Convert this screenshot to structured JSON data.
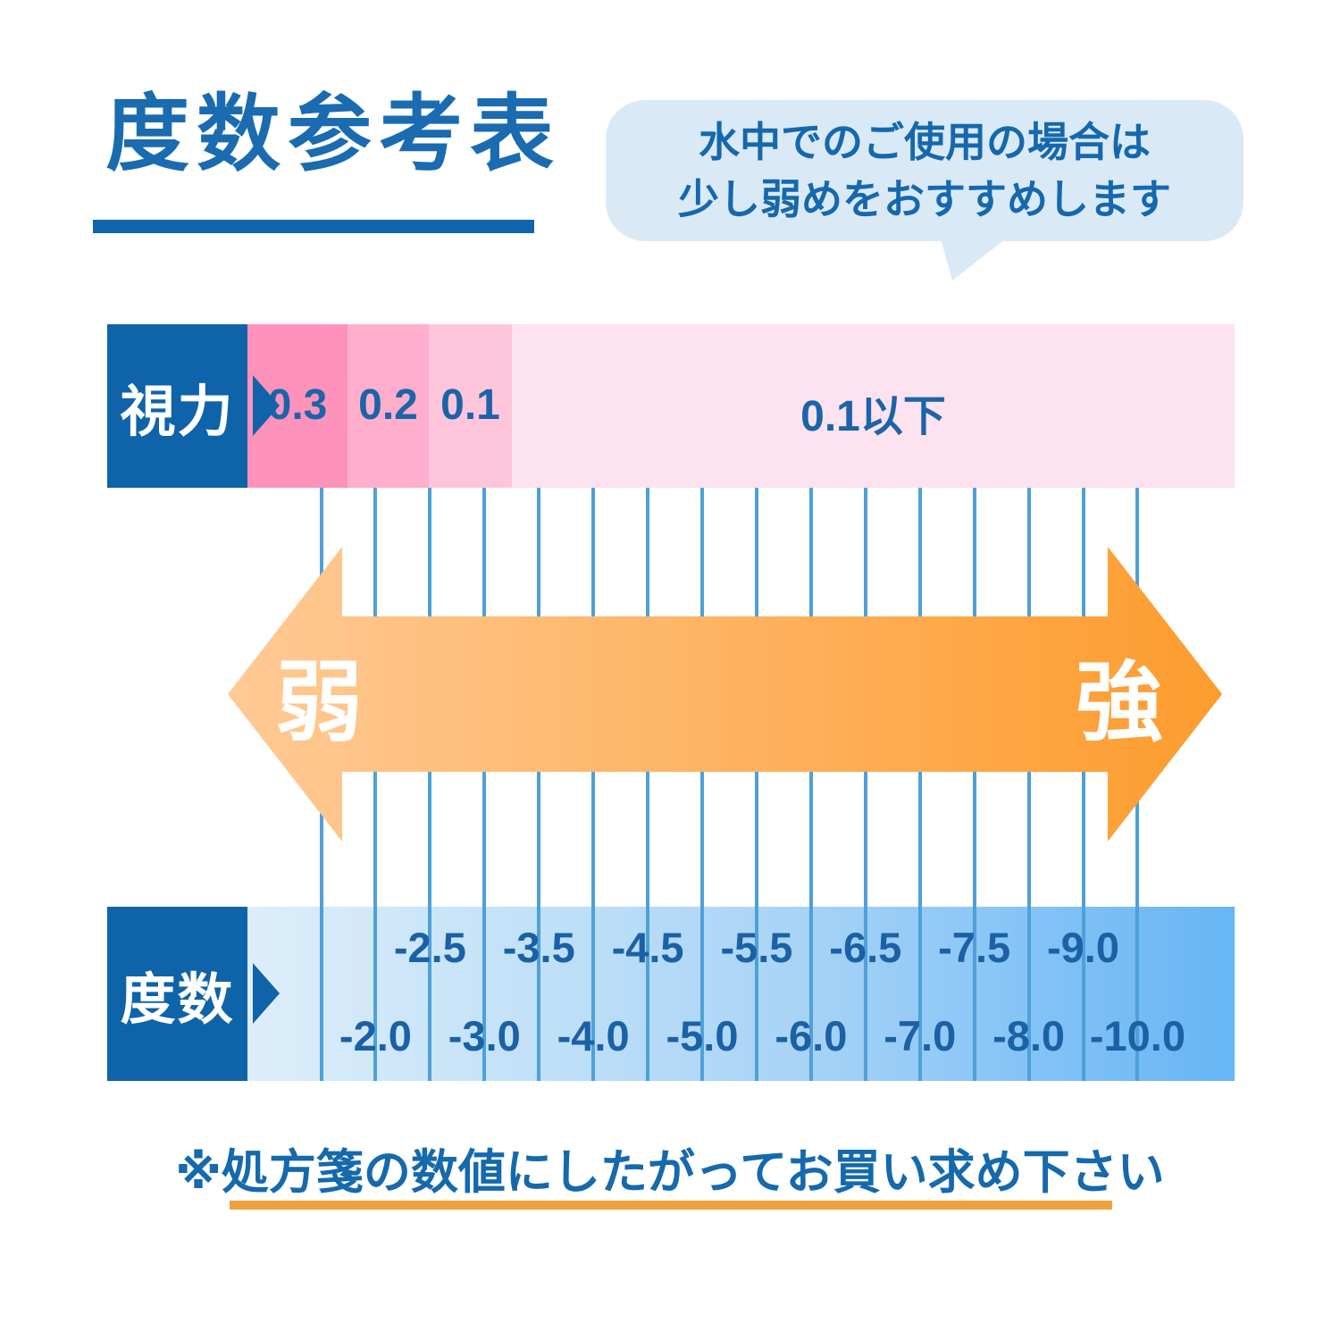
{
  "title": "度数参考表",
  "bubble": {
    "line1": "水中でのご使用の場合は",
    "line2": "少し弱めをおすすめします"
  },
  "vision_row": {
    "label": "視力",
    "segments": [
      {
        "value": "0.3",
        "color": "#FD92BB"
      },
      {
        "value": "0.2",
        "color": "#FFAECB"
      },
      {
        "value": "0.1",
        "color": "#FFC6DB"
      },
      {
        "value": "0.1以下",
        "color": "#FCE3EF"
      }
    ]
  },
  "strength_arrow": {
    "left_label": "弱",
    "right_label": "強",
    "gradient_start": "#FFCA95",
    "gradient_end": "#FD9C2E"
  },
  "power_row": {
    "label": "度数",
    "top_values": [
      "-2.5",
      "-3.5",
      "-4.5",
      "-5.5",
      "-6.5",
      "-7.5",
      "-9.0"
    ],
    "bottom_values": [
      "-2.0",
      "-3.0",
      "-4.0",
      "-5.0",
      "-6.0",
      "-7.0",
      "-8.0",
      "-10.0"
    ]
  },
  "note": "※処方箋の数値にしたがってお買い求め下さい",
  "colors": {
    "primary_blue": "#0E63A9",
    "text_blue": "#1668AE",
    "bubble_bg": "#D9EAF6",
    "connector_line": "#4FA0D9",
    "power_bar_start": "#DDEEFA",
    "power_bar_end": "#66B5F5",
    "note_underline_orange": "#EFA140"
  },
  "chart_data": {
    "type": "table",
    "title": "度数参考表",
    "description": "Vision (視力) to lens power (度数) reference chart, weak to strong",
    "vision_categories": [
      "0.3",
      "0.2",
      "0.1",
      "0.1以下"
    ],
    "power_values_ordered": [
      "-2.0",
      "-2.5",
      "-3.0",
      "-3.5",
      "-4.0",
      "-4.5",
      "-5.0",
      "-5.5",
      "-6.0",
      "-6.5",
      "-7.0",
      "-7.5",
      "-8.0",
      "-9.0",
      "-10.0"
    ],
    "power_top_row": [
      "-2.5",
      "-3.5",
      "-4.5",
      "-5.5",
      "-6.5",
      "-7.5",
      "-9.0"
    ],
    "power_bottom_row": [
      "-2.0",
      "-3.0",
      "-4.0",
      "-5.0",
      "-6.0",
      "-7.0",
      "-8.0",
      "-10.0"
    ],
    "strength_axis": {
      "left": "弱",
      "right": "強"
    },
    "annotation": "水中でのご使用の場合は少し弱めをおすすめします",
    "footnote": "※処方箋の数値にしたがってお買い求め下さい",
    "legend_position": "none",
    "grid": "vertical connector lines"
  }
}
